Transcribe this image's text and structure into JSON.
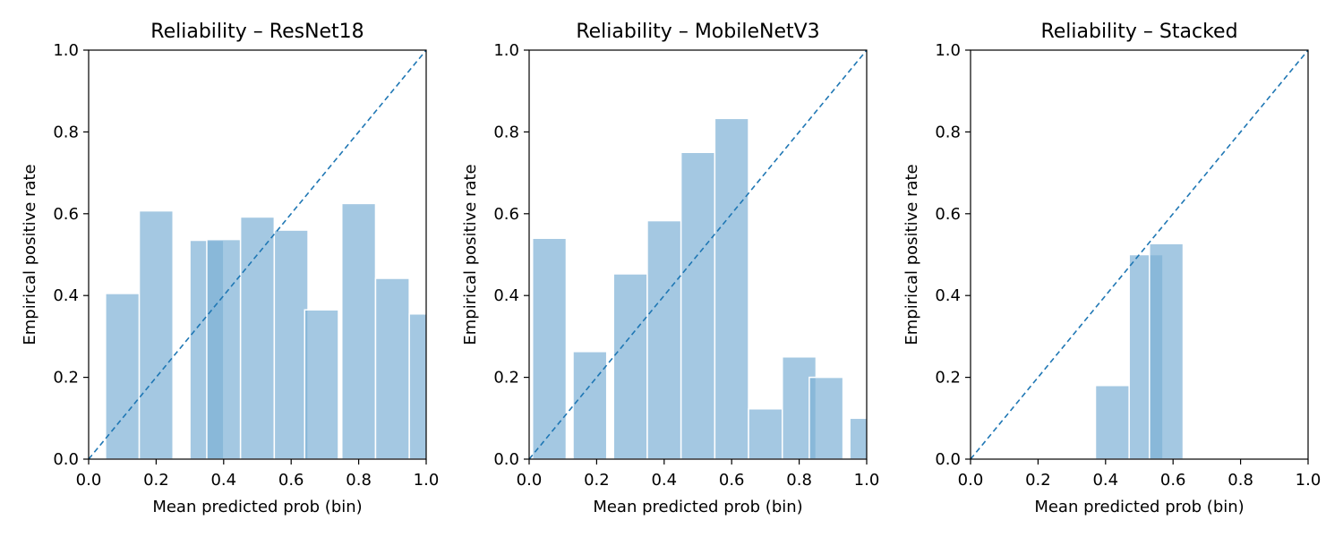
{
  "colors": {
    "bar": "#7eb0d5",
    "diagonal": "#1f77b4"
  },
  "chart_data": [
    {
      "type": "bar",
      "title": "Reliability – ResNet18",
      "xlabel": "Mean predicted prob (bin)",
      "ylabel": "Empirical positive rate",
      "xlim": [
        0,
        1
      ],
      "ylim": [
        0,
        1
      ],
      "xticks": [
        "0.0",
        "0.2",
        "0.4",
        "0.6",
        "0.8",
        "1.0"
      ],
      "yticks": [
        "0.0",
        "0.2",
        "0.4",
        "0.6",
        "0.8",
        "1.0"
      ],
      "bin_width": 0.1,
      "bars": [
        {
          "x": 0.1,
          "y": 0.405
        },
        {
          "x": 0.2,
          "y": 0.607
        },
        {
          "x": 0.35,
          "y": 0.535
        },
        {
          "x": 0.4,
          "y": 0.537
        },
        {
          "x": 0.5,
          "y": 0.592
        },
        {
          "x": 0.6,
          "y": 0.56
        },
        {
          "x": 0.69,
          "y": 0.365
        },
        {
          "x": 0.8,
          "y": 0.625
        },
        {
          "x": 0.9,
          "y": 0.442
        },
        {
          "x": 1.0,
          "y": 0.355
        }
      ],
      "diagonal": true
    },
    {
      "type": "bar",
      "title": "Reliability – MobileNetV3",
      "xlabel": "Mean predicted prob (bin)",
      "ylabel": "Empirical positive rate",
      "xlim": [
        0,
        1
      ],
      "ylim": [
        0,
        1
      ],
      "xticks": [
        "0.0",
        "0.2",
        "0.4",
        "0.6",
        "0.8",
        "1.0"
      ],
      "yticks": [
        "0.0",
        "0.2",
        "0.4",
        "0.6",
        "0.8",
        "1.0"
      ],
      "bin_width": 0.1,
      "bars": [
        {
          "x": 0.06,
          "y": 0.54
        },
        {
          "x": 0.18,
          "y": 0.263
        },
        {
          "x": 0.3,
          "y": 0.453
        },
        {
          "x": 0.4,
          "y": 0.583
        },
        {
          "x": 0.5,
          "y": 0.75
        },
        {
          "x": 0.6,
          "y": 0.833
        },
        {
          "x": 0.7,
          "y": 0.123
        },
        {
          "x": 0.8,
          "y": 0.25
        },
        {
          "x": 0.88,
          "y": 0.2
        },
        {
          "x": 1.0,
          "y": 0.1
        }
      ],
      "diagonal": true
    },
    {
      "type": "bar",
      "title": "Reliability – Stacked",
      "xlabel": "Mean predicted prob (bin)",
      "ylabel": "Empirical positive rate",
      "xlim": [
        0,
        1
      ],
      "ylim": [
        0,
        1
      ],
      "xticks": [
        "0.0",
        "0.2",
        "0.4",
        "0.6",
        "0.8",
        "1.0"
      ],
      "yticks": [
        "0.0",
        "0.2",
        "0.4",
        "0.6",
        "0.8",
        "1.0"
      ],
      "bin_width": 0.1,
      "bars": [
        {
          "x": 0.42,
          "y": 0.18
        },
        {
          "x": 0.52,
          "y": 0.5
        },
        {
          "x": 0.58,
          "y": 0.527
        }
      ],
      "diagonal": true
    }
  ]
}
